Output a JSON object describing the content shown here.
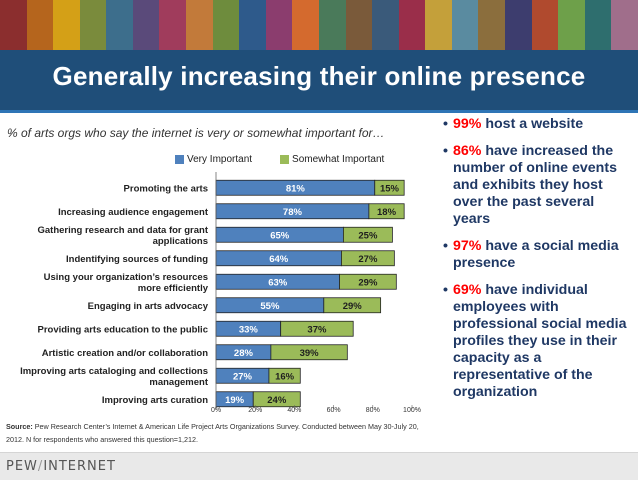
{
  "slide": {
    "title": "Generally increasing their online presence"
  },
  "stripe_colors": [
    "#8b2e2e",
    "#b5651d",
    "#d4a017",
    "#7a8b3c",
    "#3d6e8c",
    "#5a4a7a",
    "#a03c5c",
    "#c27a3a",
    "#6e8c3d",
    "#2e5a8b",
    "#8b3d6e",
    "#d46a2e",
    "#4a7a5a",
    "#7a5a3a",
    "#3a5a7a",
    "#9a2e4a",
    "#c4a03a",
    "#5a8ba0",
    "#8b6e3d",
    "#3d3d6e",
    "#b04a2e",
    "#6ea04a",
    "#2e6e6e",
    "#a06e8b"
  ],
  "colors": {
    "header": "#1f4e79",
    "very": "#4f81bd",
    "somewhat": "#9bbb59",
    "bullet_text": "#1f3864",
    "highlight": "#ff0000"
  },
  "chart": {
    "subtitle": "% of arts orgs who say the internet is very or somewhat important for…",
    "legend": {
      "very": "Very Important",
      "somewhat": "Somewhat Important"
    },
    "source_label": "Source:",
    "source_text": "Pew Research Center’s Internet & American Life Project Arts Organizations Survey. Conducted between May 30-July 20, 2012. N for respondents who answered this question=1,212."
  },
  "chart_data": {
    "type": "bar",
    "orientation": "horizontal",
    "stacked": true,
    "categories": [
      "Promoting the arts",
      "Increasing audience engagement",
      "Gathering research and data for grant applications",
      "Indentifying sources of funding",
      "Using your organization’s resources more efficiently",
      "Engaging in arts advocacy",
      "Providing arts education to the public",
      "Artistic creation and/or collaboration",
      "Improving arts cataloging and collections management",
      "Improving arts curation"
    ],
    "category_lines": [
      [
        "Promoting the arts"
      ],
      [
        "Increasing audience engagement"
      ],
      [
        "Gathering research and data for grant",
        "applications"
      ],
      [
        "Indentifying sources of funding"
      ],
      [
        "Using your organization’s resources",
        "more efficiently"
      ],
      [
        "Engaging in arts advocacy"
      ],
      [
        "Providing arts education to the public"
      ],
      [
        "Artistic creation and/or collaboration"
      ],
      [
        "Improving arts cataloging and collections",
        "management"
      ],
      [
        "Improving arts curation"
      ]
    ],
    "series": [
      {
        "name": "Very Important",
        "values": [
          81,
          78,
          65,
          64,
          63,
          55,
          33,
          28,
          27,
          19
        ]
      },
      {
        "name": "Somewhat Important",
        "values": [
          15,
          18,
          25,
          27,
          29,
          29,
          37,
          39,
          16,
          24
        ]
      }
    ],
    "data_labels": [
      [
        "81%",
        "78%",
        "65%",
        "64%",
        "63%",
        "55%",
        "33%",
        "28%",
        "27%",
        "19%"
      ],
      [
        "15%",
        "18%",
        "25%",
        "27%",
        "29%",
        "29%",
        "37%",
        "39%",
        "16%",
        "24%"
      ]
    ],
    "xlim": [
      0,
      100
    ],
    "xticks": [
      0,
      20,
      40,
      60,
      80,
      100
    ],
    "xtick_labels": [
      "0%",
      "20%",
      "40%",
      "60%",
      "80%",
      "100%"
    ],
    "legend_position": "top"
  },
  "bullets": [
    {
      "highlight": "99%",
      "text": " host a website"
    },
    {
      "highlight": "86%",
      "text": " have increased the number of online events and exhibits they host over the past several years"
    },
    {
      "highlight": "97%",
      "text": " have a social media presence"
    },
    {
      "highlight": "69%",
      "text": " have individual employees with professional social media profiles they use in their capacity as a representative of the organization"
    }
  ],
  "footer": {
    "logo_left": "PEW",
    "logo_slash": "/",
    "logo_right": "INTERNET"
  }
}
